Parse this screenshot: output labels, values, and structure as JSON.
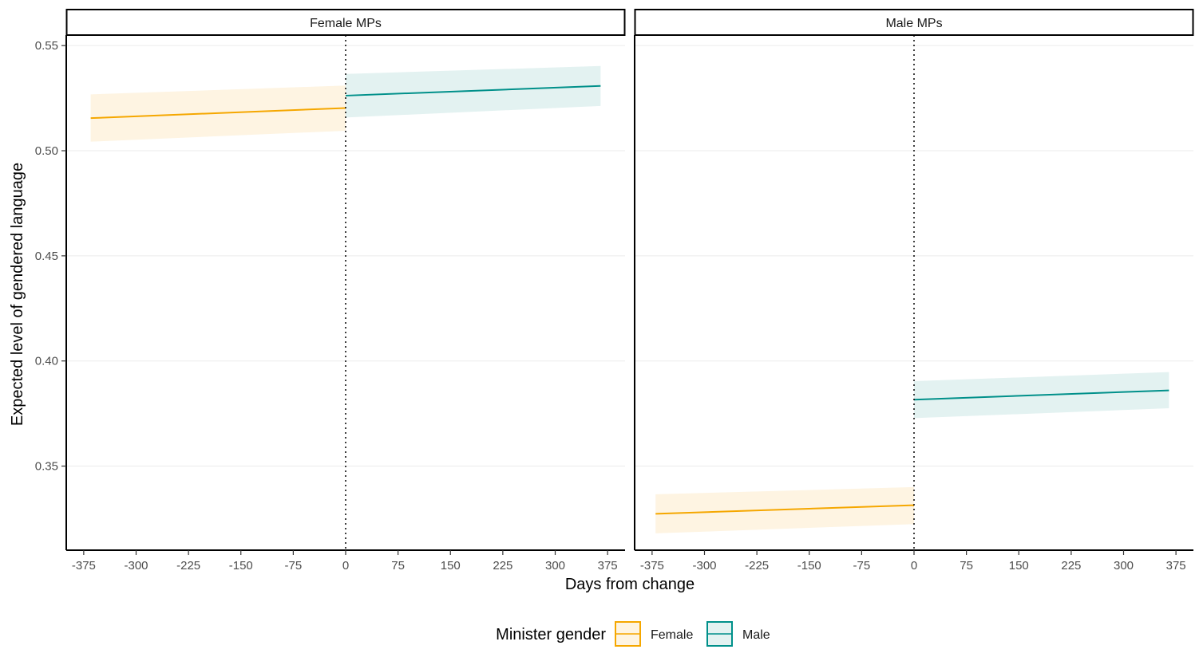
{
  "chart_data": {
    "type": "line",
    "ylabel": "Expected level of gendered language",
    "xlabel": "Days from change",
    "y_ticks": [
      "0.35",
      "0.40",
      "0.45",
      "0.50",
      "0.55"
    ],
    "y_tick_values": [
      0.35,
      0.4,
      0.45,
      0.5,
      0.55
    ],
    "x_ticks": [
      "-375",
      "-300",
      "-225",
      "-150",
      "-75",
      "0",
      "75",
      "150",
      "225",
      "300",
      "375"
    ],
    "x_tick_values": [
      -375,
      -300,
      -225,
      -150,
      -75,
      0,
      75,
      150,
      225,
      300,
      375
    ],
    "xlim": [
      -400,
      400
    ],
    "ylim": [
      0.31,
      0.555
    ],
    "grid": "horizontal major",
    "cutoff_line": {
      "x": 0,
      "style": "dotted"
    },
    "legend": {
      "title": "Minister gender",
      "position": "bottom",
      "entries": [
        {
          "label": "Female",
          "color": "#F5A700"
        },
        {
          "label": "Male",
          "color": "#00908A"
        }
      ]
    },
    "panels": [
      {
        "label": "Female MPs",
        "series": [
          {
            "name": "Female",
            "color": "#F5A700",
            "x": [
              -365,
              0
            ],
            "y": [
              0.5155,
              0.5203
            ],
            "lower": [
              0.5043,
              0.5095
            ],
            "upper": [
              0.5268,
              0.531
            ]
          },
          {
            "name": "Male",
            "color": "#00908A",
            "x": [
              0,
              365
            ],
            "y": [
              0.5262,
              0.5308
            ],
            "lower": [
              0.5158,
              0.5213
            ],
            "upper": [
              0.5365,
              0.5403
            ]
          }
        ]
      },
      {
        "label": "Male MPs",
        "series": [
          {
            "name": "Female",
            "color": "#F5A700",
            "x": [
              -370,
              0
            ],
            "y": [
              0.3273,
              0.3314
            ],
            "lower": [
              0.318,
              0.3224
            ],
            "upper": [
              0.3366,
              0.34
            ]
          },
          {
            "name": "Male",
            "color": "#00908A",
            "x": [
              0,
              365
            ],
            "y": [
              0.3816,
              0.386
            ],
            "lower": [
              0.3728,
              0.3775
            ],
            "upper": [
              0.3904,
              0.3947
            ]
          }
        ]
      }
    ]
  }
}
